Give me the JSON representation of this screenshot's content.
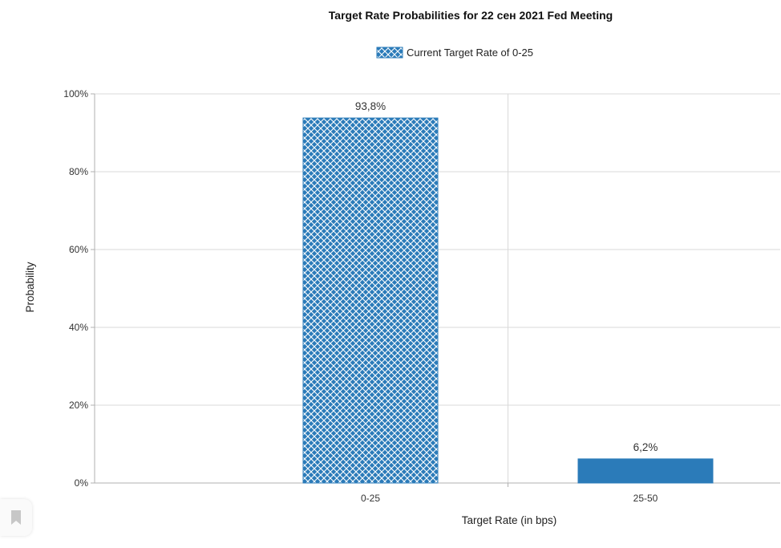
{
  "chart_data": {
    "type": "bar",
    "title": "Target Rate Probabilities for 22 сен 2021 Fed Meeting",
    "xlabel": "Target Rate (in bps)",
    "ylabel": "Probability",
    "categories": [
      "0-25",
      "25-50"
    ],
    "series": [
      {
        "name": "Current Target Rate of 0-25",
        "values": [
          93.8,
          6.2
        ],
        "data_labels": [
          "93,8%",
          "6,2%"
        ],
        "fills": [
          "hatched",
          "solid"
        ]
      }
    ],
    "ylim": [
      0,
      100
    ],
    "yticks": [
      0,
      20,
      40,
      60,
      80,
      100
    ],
    "ytick_labels": [
      "0%",
      "20%",
      "40%",
      "60%",
      "80%",
      "100%"
    ],
    "grid": true,
    "legend_position": "top-center",
    "colors": {
      "bar": "#2b7bb9",
      "hatch": "#ffffff",
      "grid": "#d9d9d9",
      "axis": "#b0b0b0"
    }
  },
  "bookmark": {
    "icon": "bookmark-icon"
  }
}
